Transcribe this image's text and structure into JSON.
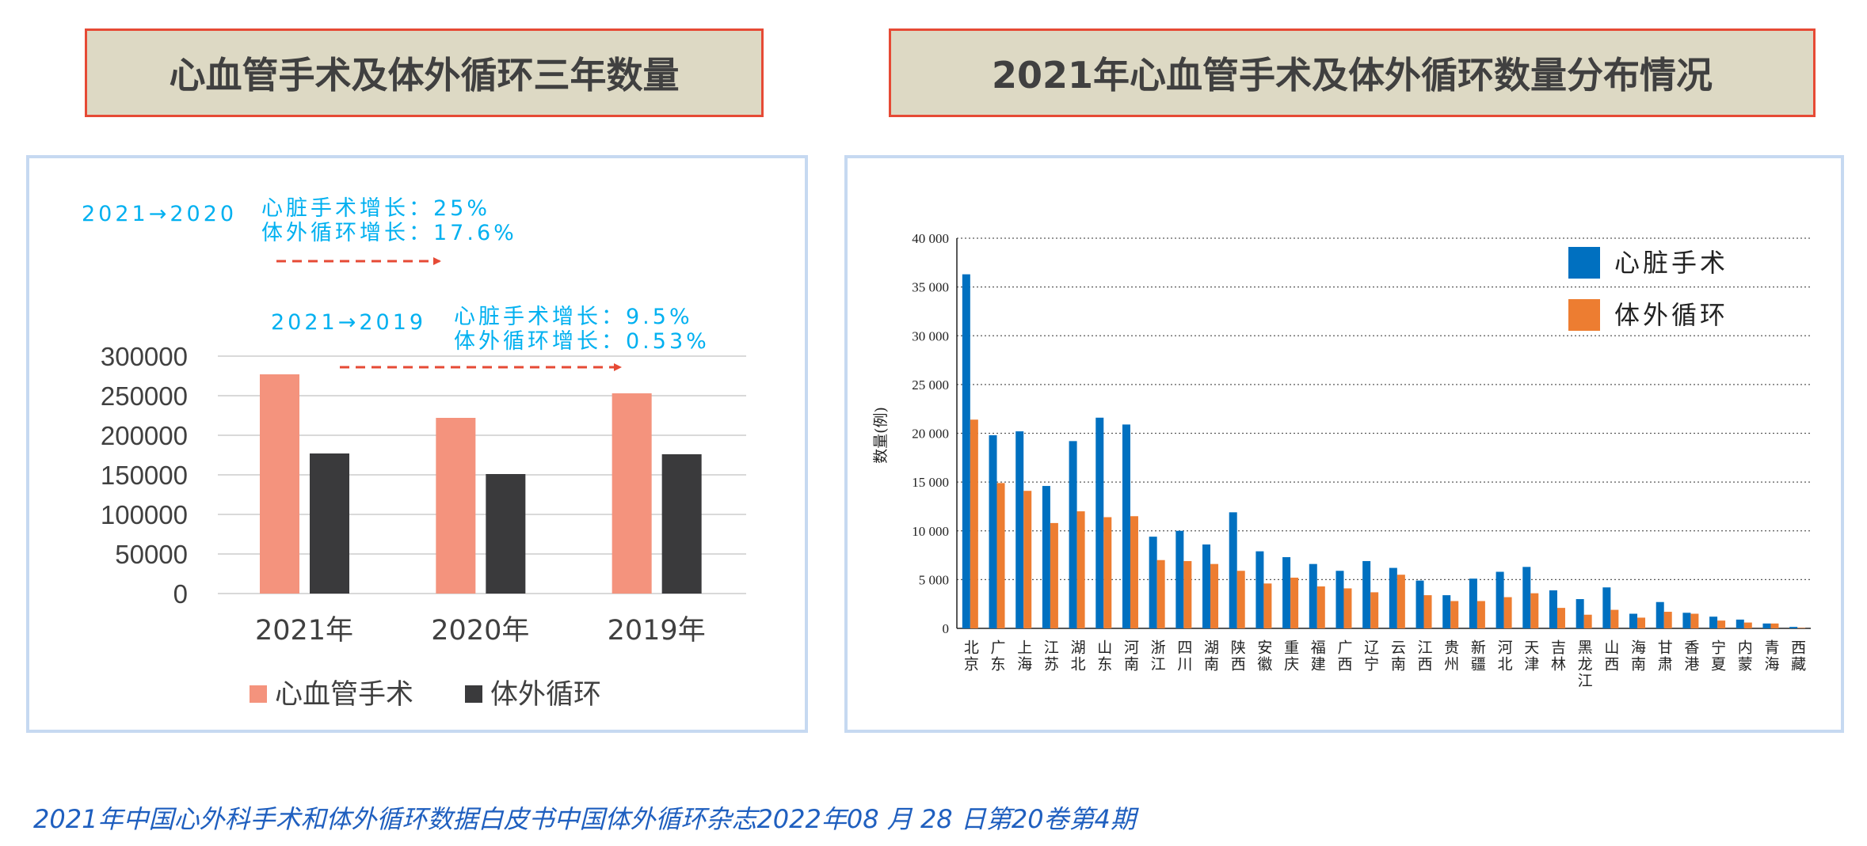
{
  "left_title": "心血管手术及体外循环三年数量",
  "right_title": "2021年心血管手术及体外循环数量分布情况",
  "annotations": {
    "a1_years": "2021→2020",
    "a1_line1": "心脏手术增长：25%",
    "a1_line2": "体外循环增长：17.6%",
    "a2_years": "2021→2019",
    "a2_line1": "心脏手术增长：9.5%",
    "a2_line2": "体外循环增长：0.53%"
  },
  "caption": "2021年中国心外科手术和体外循环数据白皮书中国体外循环杂志2022年08 月 28 日第20卷第4期",
  "colors": {
    "arrow": "#e64a35",
    "left_surgery": "#f4937d",
    "left_ecc": "#3a3a3c",
    "right_surgery": "#0070c0",
    "right_ecc": "#ed7d31"
  },
  "chart_data": [
    {
      "type": "bar",
      "title": "心血管手术及体外循环三年数量",
      "categories": [
        "2021年",
        "2020年",
        "2019年"
      ],
      "series": [
        {
          "name": "心血管手术",
          "values": [
            277000,
            222000,
            253000
          ]
        },
        {
          "name": "体外循环",
          "values": [
            177000,
            151000,
            176000
          ]
        }
      ],
      "ylim": [
        0,
        300000
      ],
      "yticks": [
        0,
        50000,
        100000,
        150000,
        200000,
        250000,
        300000
      ],
      "ytick_labels": [
        "0",
        "50000",
        "100000",
        "150000",
        "200000",
        "250000",
        "300000"
      ],
      "legend": "bottom",
      "grid": true
    },
    {
      "type": "bar",
      "title": "2021年心血管手术及体外循环数量分布情况",
      "ylabel": "数量(例)",
      "categories": [
        "北京",
        "广东",
        "上海",
        "江苏",
        "湖北",
        "山东",
        "河南",
        "浙江",
        "四川",
        "湖南",
        "陕西",
        "安徽",
        "重庆",
        "福建",
        "广西",
        "辽宁",
        "云南",
        "江西",
        "贵州",
        "新疆",
        "河北",
        "天津",
        "吉林",
        "黑龙江",
        "山西",
        "海南",
        "甘肃",
        "香港",
        "宁夏",
        "内蒙",
        "青海",
        "西藏"
      ],
      "series": [
        {
          "name": "心脏手术",
          "values": [
            36300,
            19800,
            20200,
            14600,
            19200,
            21600,
            20900,
            9400,
            10000,
            8600,
            11900,
            7900,
            7300,
            6600,
            5900,
            6900,
            6200,
            4900,
            3400,
            5100,
            5800,
            6300,
            3900,
            3000,
            4200,
            1500,
            2700,
            1600,
            1200,
            900,
            500,
            150
          ]
        },
        {
          "name": "体外循环",
          "values": [
            21400,
            14900,
            14100,
            10800,
            12000,
            11400,
            11500,
            7000,
            6900,
            6600,
            5900,
            4600,
            5200,
            4300,
            4100,
            3700,
            5500,
            3400,
            2800,
            2800,
            3200,
            3600,
            2100,
            1400,
            1900,
            1100,
            1700,
            1500,
            800,
            600,
            500,
            50
          ]
        }
      ],
      "ylim": [
        0,
        40000
      ],
      "yticks": [
        0,
        5000,
        10000,
        15000,
        20000,
        25000,
        30000,
        35000,
        40000
      ],
      "ytick_labels": [
        "0",
        "5 000",
        "10 000",
        "15 000",
        "20 000",
        "25 000",
        "30 000",
        "35 000",
        "40 000"
      ],
      "legend": "top-right",
      "grid": true
    }
  ]
}
